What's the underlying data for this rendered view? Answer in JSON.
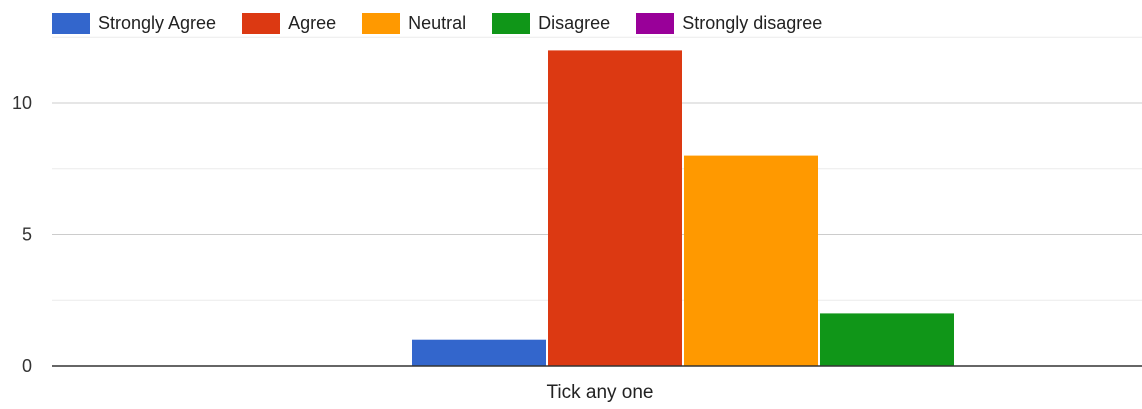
{
  "chart_data": {
    "type": "bar",
    "categories": [
      "Tick any one"
    ],
    "series": [
      {
        "name": "Strongly Agree",
        "color": "#3366cc",
        "values": [
          1
        ]
      },
      {
        "name": "Agree",
        "color": "#dc3912",
        "values": [
          12
        ]
      },
      {
        "name": "Neutral",
        "color": "#ff9900",
        "values": [
          8
        ]
      },
      {
        "name": "Disagree",
        "color": "#109618",
        "values": [
          2
        ]
      },
      {
        "name": "Strongly disagree",
        "color": "#990099",
        "values": [
          0
        ]
      }
    ],
    "y_ticks": [
      "0",
      "5",
      "10"
    ],
    "ylim": [
      0,
      13
    ],
    "grid": true,
    "legend_position": "top-left"
  }
}
